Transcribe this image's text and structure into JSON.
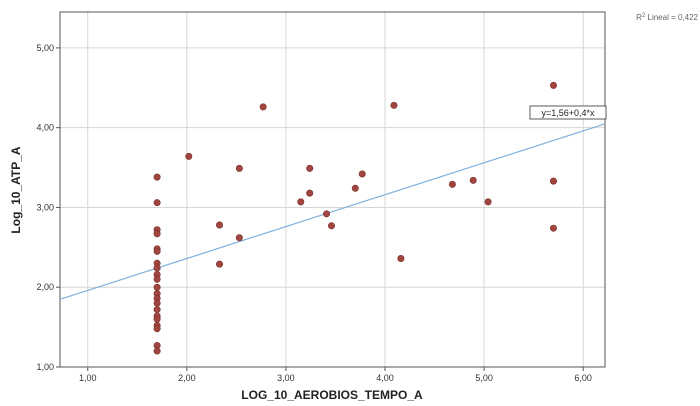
{
  "chart_data": {
    "type": "scatter",
    "xlabel": "LOG_10_AEROBIOS_TEMPO_A",
    "ylabel": "Log_10_ATP_A",
    "xlim": [
      0.72,
      6.22
    ],
    "ylim": [
      1.0,
      5.45
    ],
    "xticks": [
      1,
      2,
      3,
      4,
      5,
      6
    ],
    "yticks": [
      1,
      2,
      3,
      4,
      5
    ],
    "xtick_labels": [
      "1,00",
      "2,00",
      "3,00",
      "4,00",
      "5,00",
      "6,00"
    ],
    "ytick_labels": [
      "1,00",
      "2,00",
      "3,00",
      "4,00",
      "5,00"
    ],
    "grid": true,
    "r2_label_prefix": "R",
    "r2_label_sup": "2",
    "r2_label_rest": " Lineal = 0,422",
    "fit": {
      "intercept": 1.56,
      "slope": 0.4,
      "equation_label": "y=1,56+0,4*x",
      "color": "#7fb0e0"
    },
    "point_color": "#a0453f",
    "points": [
      {
        "x": 1.7,
        "y": 3.38
      },
      {
        "x": 1.7,
        "y": 3.06
      },
      {
        "x": 1.7,
        "y": 2.72
      },
      {
        "x": 1.7,
        "y": 2.67
      },
      {
        "x": 1.7,
        "y": 2.48
      },
      {
        "x": 1.7,
        "y": 2.45
      },
      {
        "x": 1.7,
        "y": 2.3
      },
      {
        "x": 1.7,
        "y": 2.24
      },
      {
        "x": 1.7,
        "y": 2.16
      },
      {
        "x": 1.7,
        "y": 2.1
      },
      {
        "x": 1.7,
        "y": 2.0
      },
      {
        "x": 1.7,
        "y": 1.92
      },
      {
        "x": 1.7,
        "y": 1.86
      },
      {
        "x": 1.7,
        "y": 1.8
      },
      {
        "x": 1.7,
        "y": 1.72
      },
      {
        "x": 1.7,
        "y": 1.64
      },
      {
        "x": 1.7,
        "y": 1.6
      },
      {
        "x": 1.7,
        "y": 1.52
      },
      {
        "x": 1.7,
        "y": 1.48
      },
      {
        "x": 1.7,
        "y": 1.27
      },
      {
        "x": 1.7,
        "y": 1.2
      },
      {
        "x": 2.02,
        "y": 3.64
      },
      {
        "x": 2.33,
        "y": 2.78
      },
      {
        "x": 2.33,
        "y": 2.29
      },
      {
        "x": 2.53,
        "y": 3.49
      },
      {
        "x": 2.53,
        "y": 2.62
      },
      {
        "x": 2.77,
        "y": 4.26
      },
      {
        "x": 3.15,
        "y": 3.07
      },
      {
        "x": 3.24,
        "y": 3.49
      },
      {
        "x": 3.24,
        "y": 3.18
      },
      {
        "x": 3.41,
        "y": 2.92
      },
      {
        "x": 3.46,
        "y": 2.77
      },
      {
        "x": 3.7,
        "y": 3.24
      },
      {
        "x": 3.77,
        "y": 3.42
      },
      {
        "x": 4.09,
        "y": 4.28
      },
      {
        "x": 4.16,
        "y": 2.36
      },
      {
        "x": 4.68,
        "y": 3.29
      },
      {
        "x": 4.89,
        "y": 3.34
      },
      {
        "x": 5.04,
        "y": 3.07
      },
      {
        "x": 5.7,
        "y": 4.53
      },
      {
        "x": 5.7,
        "y": 3.33
      },
      {
        "x": 5.7,
        "y": 2.74
      }
    ]
  }
}
